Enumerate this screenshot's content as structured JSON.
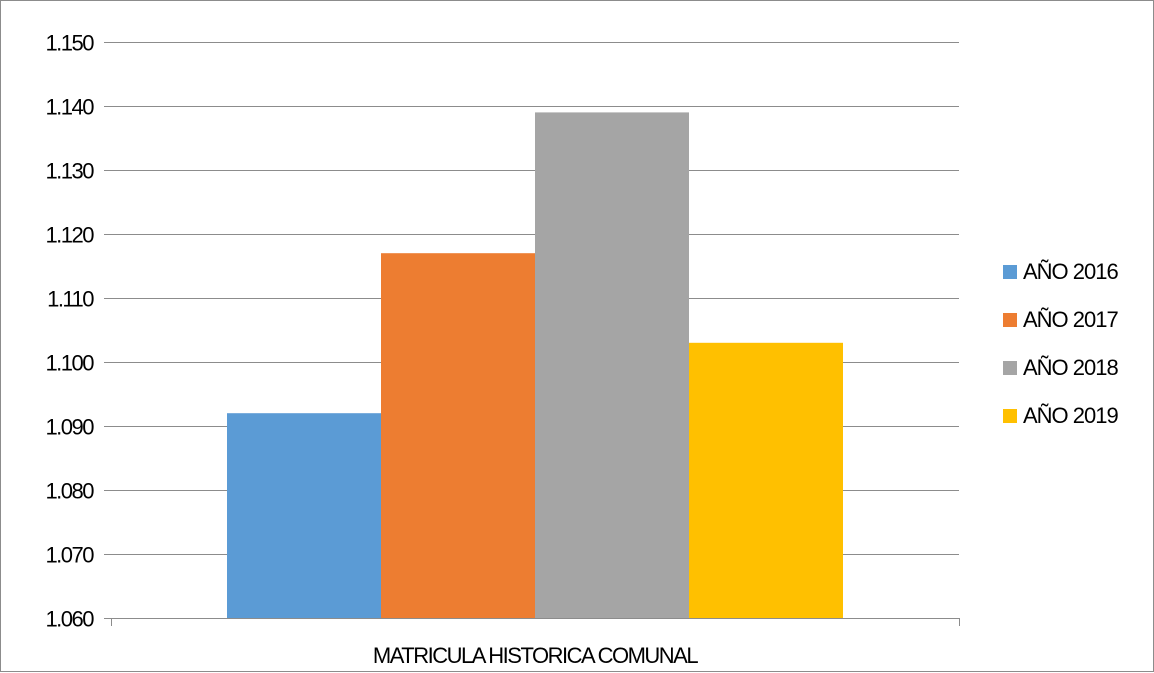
{
  "chart_data": {
    "type": "bar",
    "categories": [
      "MATRICULA HISTORICA COMUNAL"
    ],
    "series": [
      {
        "name": "AÑO 2016",
        "values": [
          1092
        ],
        "color": "#5B9BD5"
      },
      {
        "name": "AÑO 2017",
        "values": [
          1117
        ],
        "color": "#ED7D31"
      },
      {
        "name": "AÑO 2018",
        "values": [
          1139
        ],
        "color": "#A5A5A5"
      },
      {
        "name": "AÑO 2019",
        "values": [
          1103
        ],
        "color": "#FFC000"
      }
    ],
    "ylim": [
      1060,
      1150
    ],
    "ytick_step": 10,
    "ytick_labels": [
      "1.060",
      "1.070",
      "1.080",
      "1.090",
      "1.100",
      "1.110",
      "1.120",
      "1.130",
      "1.140",
      "1.150"
    ],
    "grid": true,
    "gridline_color": "#8c8c8c",
    "legend_position": "right",
    "title": "",
    "xlabel": "",
    "ylabel": ""
  }
}
